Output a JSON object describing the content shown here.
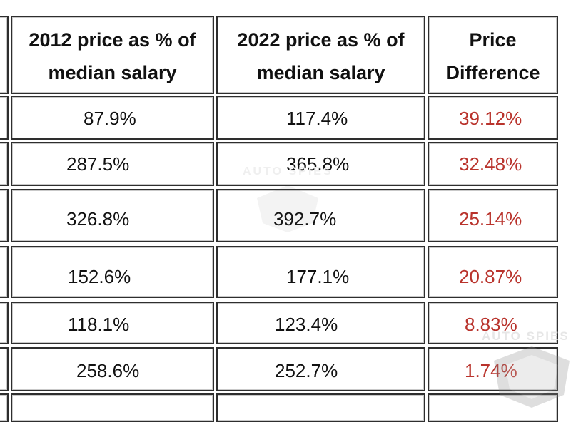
{
  "table": {
    "headers": [
      "2012 price as % of median salary",
      "2022 price as % of median salary",
      "Price Difference"
    ],
    "header_lines": [
      [
        "2012 price as % of",
        "median salary"
      ],
      [
        "2022 price as % of",
        "median salary"
      ],
      [
        "Price",
        "Difference"
      ]
    ],
    "rows": [
      [
        "87.9%",
        "117.4%",
        "39.12%"
      ],
      [
        "287.5%",
        "365.8%",
        "32.48%"
      ],
      [
        "326.8%",
        "392.7%",
        "25.14%"
      ],
      [
        "152.6%",
        "177.1%",
        "20.87%"
      ],
      [
        "118.1%",
        "123.4%",
        "8.83%"
      ],
      [
        "258.6%",
        "252.7%",
        "1.74%"
      ]
    ]
  },
  "watermark": {
    "text": "AUTO SPIES"
  },
  "colors": {
    "difference": "#b9332c",
    "border": "#2e2e2e",
    "text": "#111111"
  }
}
